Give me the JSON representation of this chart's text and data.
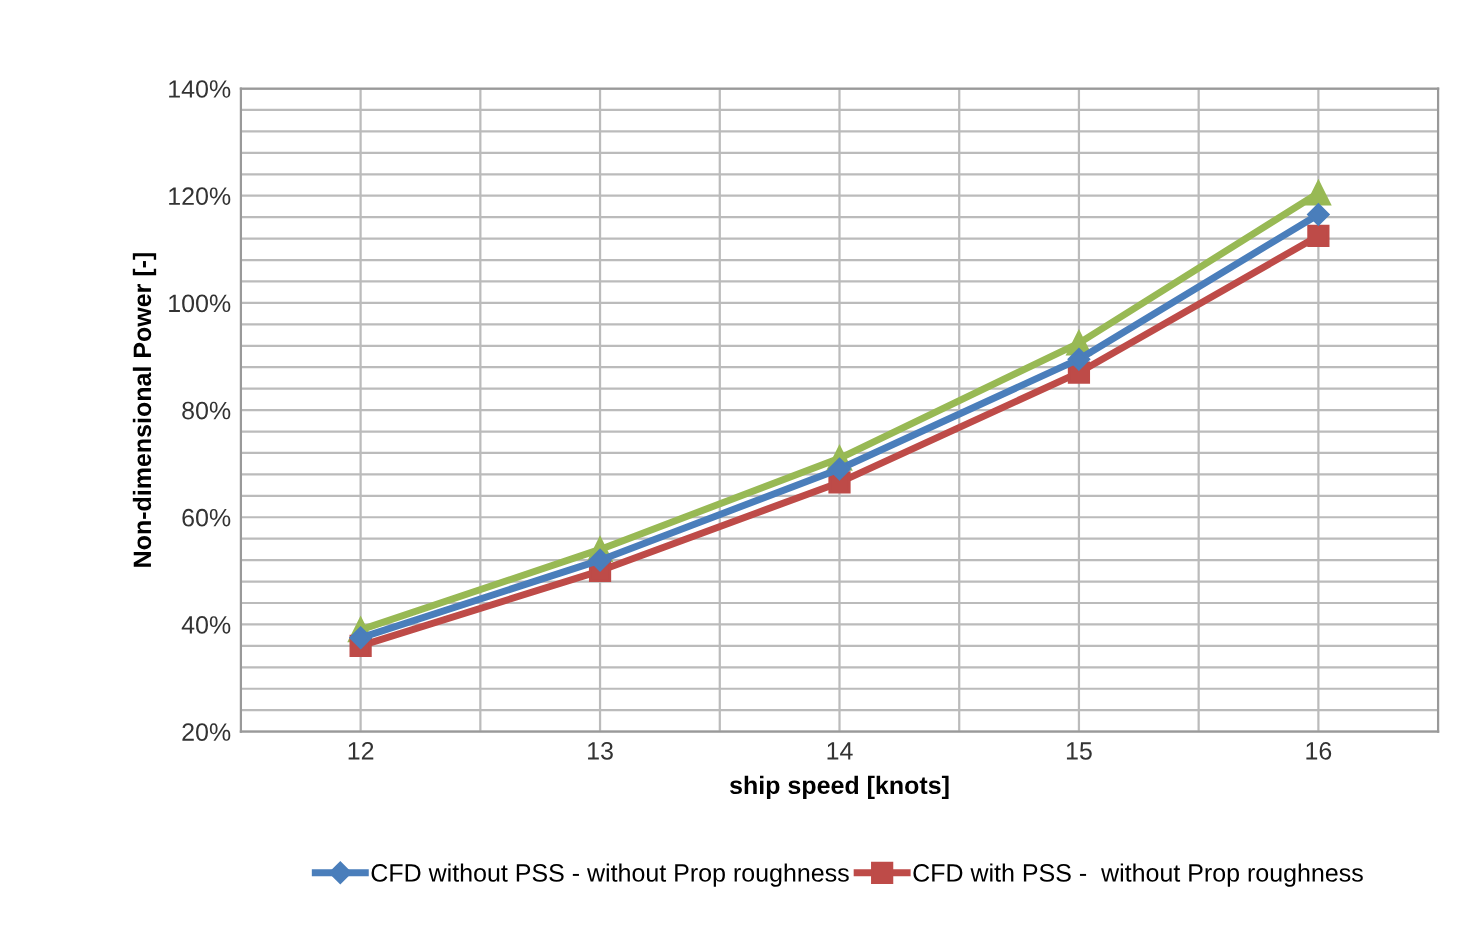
{
  "chart_data": {
    "type": "line",
    "xlabel": "ship speed [knots]",
    "ylabel": "Non-dimensional Power [-]",
    "categories": [
      "12",
      "13",
      "14",
      "15",
      "16"
    ],
    "series": [
      {
        "name": "CFD without PSS - without Prop roughness",
        "color": "#4a7ebb",
        "marker": "diamond",
        "values": [
          37.5,
          52,
          69,
          89.5,
          116.5
        ]
      },
      {
        "name": "CFD with PSS -  without Prop roughness",
        "color": "#be4b48",
        "marker": "square",
        "values": [
          36,
          50,
          66.5,
          87,
          112.5
        ]
      },
      {
        "color": "#98b954",
        "marker": "triangle",
        "values": [
          39,
          54,
          71,
          92.5,
          120.5
        ]
      }
    ],
    "ylim": [
      20,
      140
    ],
    "yticks": [
      {
        "value": 20,
        "label": "20%"
      },
      {
        "value": 24,
        "label": null
      },
      {
        "value": 28,
        "label": null
      },
      {
        "value": 32,
        "label": null
      },
      {
        "value": 36,
        "label": null
      },
      {
        "value": 40,
        "label": "40%"
      },
      {
        "value": 44,
        "label": null
      },
      {
        "value": 48,
        "label": null
      },
      {
        "value": 52,
        "label": null
      },
      {
        "value": 56,
        "label": null
      },
      {
        "value": 60,
        "label": "60%"
      },
      {
        "value": 64,
        "label": null
      },
      {
        "value": 68,
        "label": null
      },
      {
        "value": 72,
        "label": null
      },
      {
        "value": 76,
        "label": null
      },
      {
        "value": 80,
        "label": "80%"
      },
      {
        "value": 84,
        "label": null
      },
      {
        "value": 88,
        "label": null
      },
      {
        "value": 92,
        "label": null
      },
      {
        "value": 96,
        "label": null
      },
      {
        "value": 100,
        "label": "100%"
      },
      {
        "value": 104,
        "label": null
      },
      {
        "value": 108,
        "label": null
      },
      {
        "value": 112,
        "label": null
      },
      {
        "value": 116,
        "label": null
      },
      {
        "value": 120,
        "label": "120%"
      },
      {
        "value": 124,
        "label": null
      },
      {
        "value": 128,
        "label": null
      },
      {
        "value": 132,
        "label": null
      },
      {
        "value": 136,
        "label": null
      },
      {
        "value": 140,
        "label": "140%"
      }
    ],
    "grid": true,
    "legend": "bottom",
    "line_style": "solid"
  }
}
